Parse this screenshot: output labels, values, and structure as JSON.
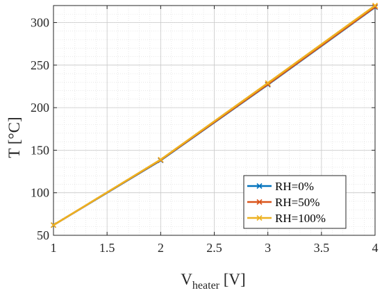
{
  "chart_data": {
    "type": "line",
    "xlabel_main": "V",
    "xlabel_sub": "heater",
    "xlabel_unit": " [V]",
    "ylabel": "T [°C]",
    "xlim": [
      1,
      4
    ],
    "ylim": [
      50,
      320
    ],
    "x_ticks": [
      1,
      1.5,
      2,
      2.5,
      3,
      3.5,
      4
    ],
    "x_tick_labels": [
      "1",
      "1.5",
      "2",
      "2.5",
      "3",
      "3.5",
      "4"
    ],
    "y_ticks": [
      50,
      100,
      150,
      200,
      250,
      300
    ],
    "y_tick_labels": [
      "50",
      "100",
      "150",
      "200",
      "250",
      "300"
    ],
    "grid": true,
    "minor_grid": true,
    "legend_position": "bottom-right",
    "x": [
      1,
      2,
      3,
      4
    ],
    "series": [
      {
        "name": "RH=0%",
        "color": "#0072BD",
        "marker": "x",
        "values": [
          62,
          138,
          227,
          318
        ]
      },
      {
        "name": "RH=50%",
        "color": "#D95319",
        "marker": "x",
        "values": [
          62,
          138.5,
          227.5,
          318.5
        ]
      },
      {
        "name": "RH=100%",
        "color": "#EDB120",
        "marker": "x",
        "values": [
          62,
          139,
          229,
          320
        ]
      }
    ]
  }
}
